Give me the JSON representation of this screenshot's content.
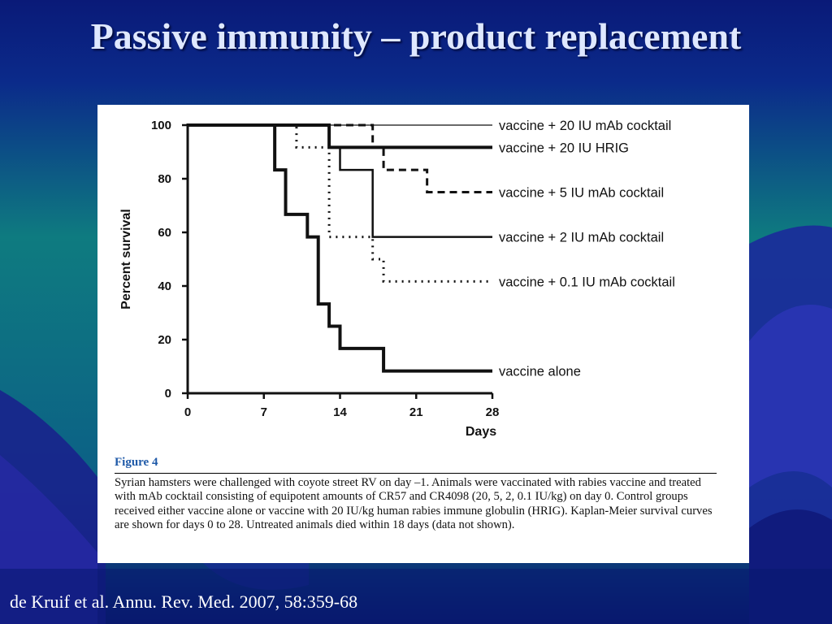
{
  "slide": {
    "title": "Passive immunity – product replacement",
    "citation": "de Kruif  et al. Annu. Rev. Med. 2007, 58:359-68",
    "colors": {
      "background_top": "#0a1a78",
      "background_mid": "#0e7b80",
      "title": "#dfe8ff"
    }
  },
  "figure": {
    "heading": "Figure 4",
    "caption": "Syrian hamsters were challenged with coyote street RV on day –1. Animals were vaccinated with rabies vaccine and treated with mAb cocktail consisting of equipotent amounts of CR57 and CR4098 (20, 5, 2, 0.1 IU/kg) on day 0. Control groups received either vaccine alone or vaccine with 20 IU/kg human rabies immune globulin (HRIG). Kaplan-Meier survival curves are shown for days 0 to 28. Untreated animals died within 18 days (data not shown)."
  },
  "chart_data": {
    "type": "line",
    "step": true,
    "title": "",
    "xlabel": "Days",
    "ylabel": "Percent survival",
    "xlim": [
      0,
      28
    ],
    "ylim": [
      0,
      100
    ],
    "xticks": [
      0,
      7,
      14,
      21,
      28
    ],
    "yticks": [
      0,
      20,
      40,
      60,
      80,
      100
    ],
    "grid": false,
    "legend_placement": "right (direct labels at line ends)",
    "series": [
      {
        "name": "vaccine + 20 IU mAb cocktail",
        "style": "thin",
        "x": [
          0,
          28
        ],
        "y": [
          100,
          100
        ]
      },
      {
        "name": "vaccine + 20 IU HRIG",
        "style": "thick",
        "x": [
          0,
          13,
          28
        ],
        "y": [
          100,
          91.7,
          91.7
        ]
      },
      {
        "name": "vaccine + 5 IU mAb cocktail",
        "style": "dashed",
        "x": [
          0,
          17,
          18,
          22,
          28
        ],
        "y": [
          100,
          91.7,
          83.3,
          75,
          75
        ]
      },
      {
        "name": "vaccine + 2 IU mAb cocktail",
        "style": "medium",
        "x": [
          0,
          13,
          14,
          17,
          28
        ],
        "y": [
          100,
          91.7,
          83.3,
          58.3,
          58.3
        ]
      },
      {
        "name": "vaccine + 0.1 IU mAb cocktail",
        "style": "dotted",
        "x": [
          0,
          10,
          13,
          17,
          18,
          28
        ],
        "y": [
          100,
          91.7,
          58.3,
          50,
          41.7,
          41.7
        ]
      },
      {
        "name": "vaccine alone",
        "style": "thick",
        "x": [
          0,
          8,
          9,
          11,
          12,
          13,
          14,
          18,
          28
        ],
        "y": [
          100,
          83.3,
          66.7,
          58.3,
          33.3,
          25,
          16.7,
          8.3,
          8.3
        ]
      }
    ]
  }
}
